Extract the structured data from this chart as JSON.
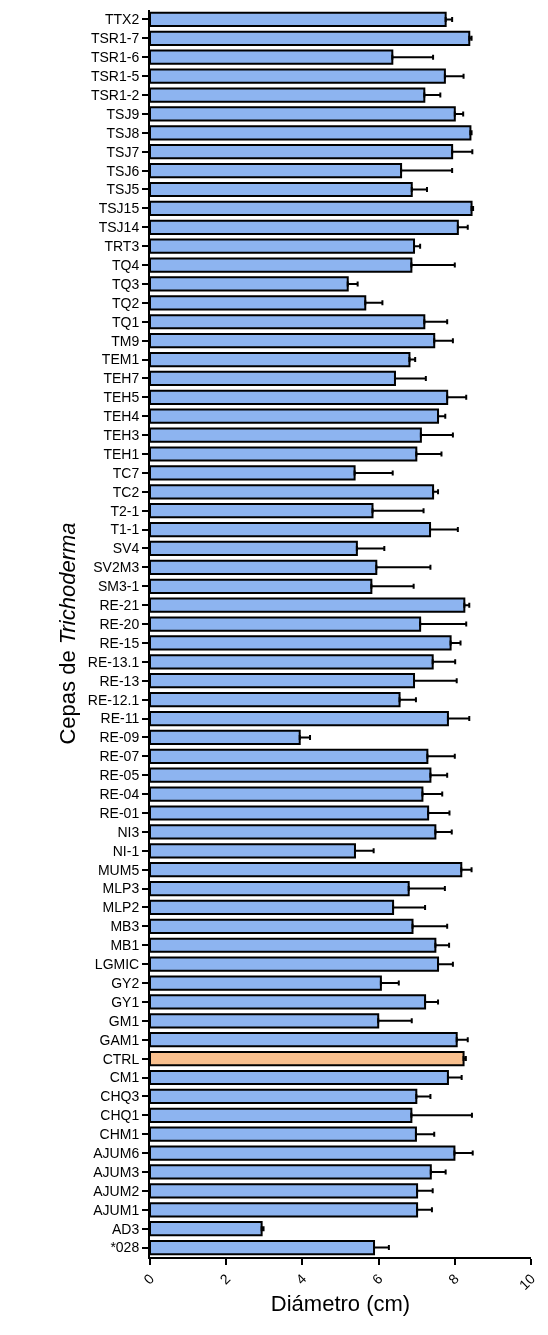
{
  "chart_data": {
    "type": "bar",
    "orientation": "horizontal",
    "xlabel": "Diámetro (cm)",
    "ylabel": "Cepas de Trichoderma",
    "categories": [
      "TTX2",
      "TSR1-7",
      "TSR1-6",
      "TSR1-5",
      "TSR1-2",
      "TSJ9",
      "TSJ8",
      "TSJ7",
      "TSJ6",
      "TSJ5",
      "TSJ15",
      "TSJ14",
      "TRT3",
      "TQ4",
      "TQ3",
      "TQ2",
      "TQ1",
      "TM9",
      "TEM1",
      "TEH7",
      "TEH5",
      "TEH4",
      "TEH3",
      "TEH1",
      "TC7",
      "TC2",
      "T2-1",
      "T1-1",
      "SV4",
      "SV2M3",
      "SM3-1",
      "RE-21",
      "RE-20",
      "RE-15",
      "RE-13.1",
      "RE-13",
      "RE-12.1",
      "RE-11",
      "RE-09",
      "RE-07",
      "RE-05",
      "RE-04",
      "RE-01",
      "NI3",
      "NI-1",
      "MUM5",
      "MLP3",
      "MLP2",
      "MB3",
      "MB1",
      "LGMIC",
      "GY2",
      "GY1",
      "GM1",
      "GAM1",
      "CTRL",
      "CM1",
      "CHQ3",
      "CHQ1",
      "CHM1",
      "AJUM6",
      "AJUM3",
      "AJUM2",
      "AJUM1",
      "AD3",
      "*028"
    ],
    "values": [
      7.76,
      8.38,
      6.36,
      7.74,
      7.2,
      8.0,
      8.41,
      7.93,
      6.59,
      6.87,
      8.44,
      8.08,
      6.93,
      6.86,
      5.19,
      5.65,
      7.2,
      7.46,
      6.81,
      6.43,
      7.8,
      7.56,
      7.11,
      6.99,
      5.37,
      7.43,
      5.84,
      7.35,
      5.43,
      5.94,
      5.81,
      8.25,
      7.09,
      7.89,
      7.42,
      6.93,
      6.55,
      7.82,
      3.93,
      7.28,
      7.36,
      7.15,
      7.3,
      7.49,
      5.38,
      8.17,
      6.79,
      6.38,
      6.89,
      7.49,
      7.56,
      6.06,
      7.22,
      5.99,
      8.05,
      8.23,
      7.82,
      6.99,
      6.86,
      6.98,
      7.99,
      7.37,
      7.01,
      7.01,
      2.93,
      5.88
    ],
    "errors": [
      [
        7.76,
        7.93
      ],
      [
        8.38,
        8.44
      ],
      [
        6.36,
        7.43
      ],
      [
        7.74,
        8.23
      ],
      [
        7.2,
        7.62
      ],
      [
        8.0,
        8.22
      ],
      [
        8.41,
        8.44
      ],
      [
        7.93,
        8.46
      ],
      [
        6.59,
        7.93
      ],
      [
        6.87,
        7.27
      ],
      [
        8.44,
        8.48
      ],
      [
        8.08,
        8.34
      ],
      [
        6.93,
        7.09
      ],
      [
        6.86,
        8.0
      ],
      [
        5.19,
        5.45
      ],
      [
        5.65,
        6.1
      ],
      [
        7.2,
        7.8
      ],
      [
        7.46,
        7.95
      ],
      [
        6.81,
        6.96
      ],
      [
        6.43,
        7.24
      ],
      [
        7.8,
        8.3
      ],
      [
        7.56,
        7.75
      ],
      [
        7.11,
        7.95
      ],
      [
        6.99,
        7.65
      ],
      [
        5.37,
        6.37
      ],
      [
        7.43,
        7.56
      ],
      [
        5.84,
        7.18
      ],
      [
        7.35,
        8.08
      ],
      [
        5.43,
        6.15
      ],
      [
        5.94,
        7.36
      ],
      [
        5.81,
        6.92
      ],
      [
        8.25,
        8.38
      ],
      [
        7.09,
        8.3
      ],
      [
        7.89,
        8.15
      ],
      [
        7.42,
        8.01
      ],
      [
        6.93,
        8.05
      ],
      [
        6.55,
        6.98
      ],
      [
        7.82,
        8.38
      ],
      [
        3.93,
        4.2
      ],
      [
        7.28,
        8.0
      ],
      [
        7.36,
        7.8
      ],
      [
        7.15,
        7.67
      ],
      [
        7.3,
        7.86
      ],
      [
        7.49,
        7.92
      ],
      [
        5.38,
        5.87
      ],
      [
        8.17,
        8.44
      ],
      [
        6.79,
        7.74
      ],
      [
        6.38,
        7.22
      ],
      [
        6.89,
        7.8
      ],
      [
        7.49,
        7.85
      ],
      [
        7.56,
        7.95
      ],
      [
        6.06,
        6.53
      ],
      [
        7.22,
        7.56
      ],
      [
        5.99,
        6.87
      ],
      [
        8.05,
        8.34
      ],
      [
        8.23,
        8.29
      ],
      [
        7.82,
        8.18
      ],
      [
        6.99,
        7.36
      ],
      [
        6.86,
        8.45
      ],
      [
        6.98,
        7.46
      ],
      [
        7.99,
        8.47
      ],
      [
        7.37,
        7.76
      ],
      [
        7.01,
        7.42
      ],
      [
        7.01,
        7.4
      ],
      [
        2.93,
        2.98
      ],
      [
        5.88,
        6.27
      ]
    ],
    "colors": [
      "#8db4f0",
      "#8db4f0",
      "#8db4f0",
      "#8db4f0",
      "#8db4f0",
      "#8db4f0",
      "#8db4f0",
      "#8db4f0",
      "#8db4f0",
      "#8db4f0",
      "#8db4f0",
      "#8db4f0",
      "#8db4f0",
      "#8db4f0",
      "#8db4f0",
      "#8db4f0",
      "#8db4f0",
      "#8db4f0",
      "#8db4f0",
      "#8db4f0",
      "#8db4f0",
      "#8db4f0",
      "#8db4f0",
      "#8db4f0",
      "#8db4f0",
      "#8db4f0",
      "#8db4f0",
      "#8db4f0",
      "#8db4f0",
      "#8db4f0",
      "#8db4f0",
      "#8db4f0",
      "#8db4f0",
      "#8db4f0",
      "#8db4f0",
      "#8db4f0",
      "#8db4f0",
      "#8db4f0",
      "#8db4f0",
      "#8db4f0",
      "#8db4f0",
      "#8db4f0",
      "#8db4f0",
      "#8db4f0",
      "#8db4f0",
      "#8db4f0",
      "#8db4f0",
      "#8db4f0",
      "#8db4f0",
      "#8db4f0",
      "#8db4f0",
      "#8db4f0",
      "#8db4f0",
      "#8db4f0",
      "#8db4f0",
      "#f9c08e",
      "#8db4f0",
      "#8db4f0",
      "#8db4f0",
      "#8db4f0",
      "#8db4f0",
      "#8db4f0",
      "#8db4f0",
      "#8db4f0",
      "#8db4f0",
      "#8db4f0"
    ],
    "xlim": [
      0,
      10
    ],
    "xticks": [
      0,
      2,
      4,
      6,
      8,
      10
    ]
  }
}
